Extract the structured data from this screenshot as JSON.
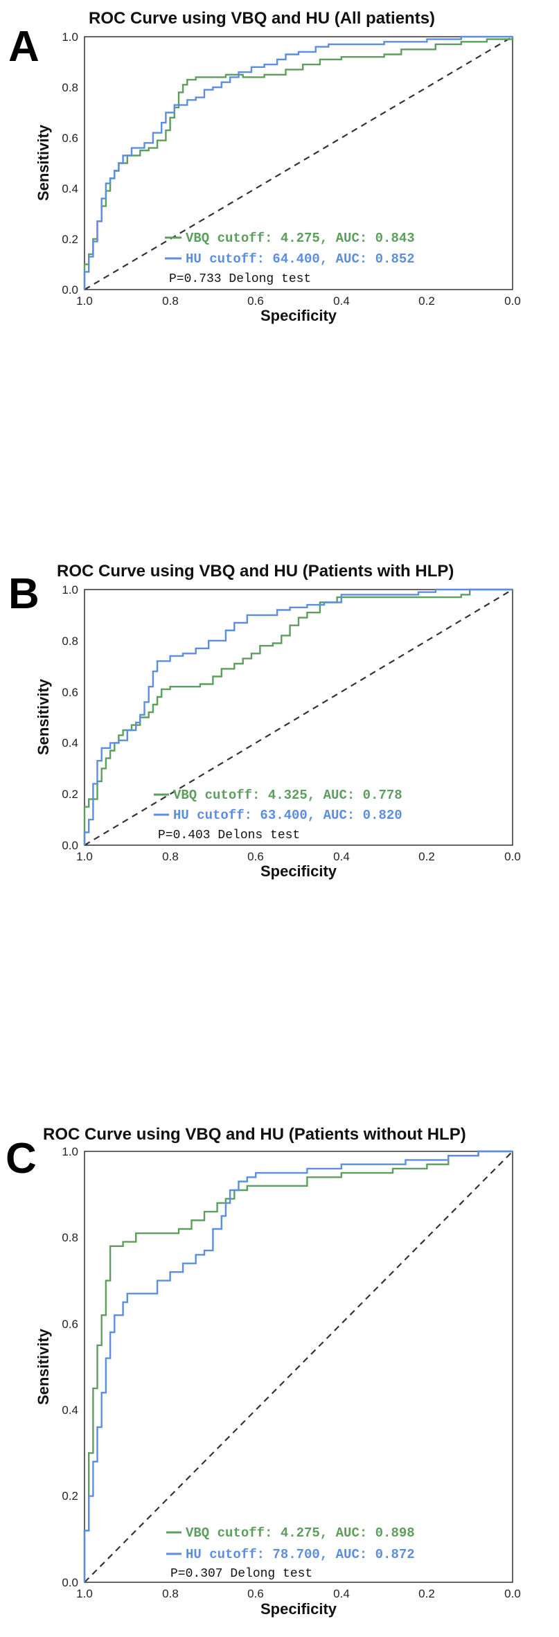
{
  "chart_data": [
    {
      "type": "line",
      "panel": "A",
      "title": "ROC Curve using VBQ and HU (All patients)",
      "xlabel": "Specificity",
      "ylabel": "Sensitivity",
      "xlim": [
        1.0,
        0.0
      ],
      "ylim": [
        0.0,
        1.0
      ],
      "xticks": [
        "1.0",
        "0.8",
        "0.6",
        "0.4",
        "0.2",
        "0.0"
      ],
      "yticks": [
        "0.0",
        "0.2",
        "0.4",
        "0.6",
        "0.8",
        "1.0"
      ],
      "series": [
        {
          "name": "VBQ",
          "legend": "VBQ cutoff: 4.275, AUC: 0.843",
          "color": "#5c9e5c",
          "points": [
            [
              1.0,
              0.0
            ],
            [
              1.0,
              0.1
            ],
            [
              0.99,
              0.14
            ],
            [
              0.98,
              0.2
            ],
            [
              0.97,
              0.27
            ],
            [
              0.96,
              0.33
            ],
            [
              0.95,
              0.39
            ],
            [
              0.94,
              0.44
            ],
            [
              0.93,
              0.47
            ],
            [
              0.92,
              0.5
            ],
            [
              0.9,
              0.53
            ],
            [
              0.87,
              0.55
            ],
            [
              0.85,
              0.56
            ],
            [
              0.83,
              0.59
            ],
            [
              0.81,
              0.63
            ],
            [
              0.8,
              0.68
            ],
            [
              0.79,
              0.72
            ],
            [
              0.78,
              0.78
            ],
            [
              0.77,
              0.81
            ],
            [
              0.76,
              0.83
            ],
            [
              0.74,
              0.84
            ],
            [
              0.7,
              0.84
            ],
            [
              0.67,
              0.85
            ],
            [
              0.63,
              0.84
            ],
            [
              0.58,
              0.85
            ],
            [
              0.53,
              0.87
            ],
            [
              0.49,
              0.89
            ],
            [
              0.45,
              0.91
            ],
            [
              0.4,
              0.92
            ],
            [
              0.34,
              0.92
            ],
            [
              0.3,
              0.93
            ],
            [
              0.26,
              0.95
            ],
            [
              0.18,
              0.97
            ],
            [
              0.12,
              0.98
            ],
            [
              0.06,
              0.99
            ],
            [
              0.0,
              1.0
            ]
          ]
        },
        {
          "name": "HU",
          "legend": "HU cutoff: 64.400, AUC: 0.852",
          "color": "#5b8ee0",
          "points": [
            [
              1.0,
              0.0
            ],
            [
              1.0,
              0.07
            ],
            [
              0.99,
              0.13
            ],
            [
              0.98,
              0.19
            ],
            [
              0.97,
              0.27
            ],
            [
              0.96,
              0.36
            ],
            [
              0.95,
              0.42
            ],
            [
              0.94,
              0.44
            ],
            [
              0.93,
              0.47
            ],
            [
              0.92,
              0.5
            ],
            [
              0.91,
              0.53
            ],
            [
              0.89,
              0.56
            ],
            [
              0.86,
              0.58
            ],
            [
              0.84,
              0.62
            ],
            [
              0.82,
              0.66
            ],
            [
              0.81,
              0.7
            ],
            [
              0.79,
              0.73
            ],
            [
              0.76,
              0.75
            ],
            [
              0.74,
              0.76
            ],
            [
              0.72,
              0.79
            ],
            [
              0.7,
              0.8
            ],
            [
              0.68,
              0.82
            ],
            [
              0.66,
              0.84
            ],
            [
              0.64,
              0.86
            ],
            [
              0.61,
              0.88
            ],
            [
              0.58,
              0.89
            ],
            [
              0.55,
              0.91
            ],
            [
              0.53,
              0.93
            ],
            [
              0.5,
              0.94
            ],
            [
              0.46,
              0.96
            ],
            [
              0.43,
              0.97
            ],
            [
              0.38,
              0.97
            ],
            [
              0.3,
              0.98
            ],
            [
              0.2,
              0.99
            ],
            [
              0.12,
              1.0
            ],
            [
              0.0,
              1.0
            ]
          ]
        }
      ],
      "note": "P=0.733 Delong test"
    },
    {
      "type": "line",
      "panel": "B",
      "title": "ROC Curve using VBQ and HU (Patients with HLP)",
      "xlabel": "Specificity",
      "ylabel": "Sensitivity",
      "xlim": [
        1.0,
        0.0
      ],
      "ylim": [
        0.0,
        1.0
      ],
      "xticks": [
        "1.0",
        "0.8",
        "0.6",
        "0.4",
        "0.2",
        "0.0"
      ],
      "yticks": [
        "0.0",
        "0.2",
        "0.4",
        "0.6",
        "0.8",
        "1.0"
      ],
      "series": [
        {
          "name": "VBQ",
          "legend": "VBQ cutoff: 4.325, AUC: 0.778",
          "color": "#5c9e5c",
          "points": [
            [
              1.0,
              0.0
            ],
            [
              1.0,
              0.15
            ],
            [
              0.99,
              0.18
            ],
            [
              0.97,
              0.18
            ],
            [
              0.97,
              0.25
            ],
            [
              0.96,
              0.3
            ],
            [
              0.95,
              0.34
            ],
            [
              0.94,
              0.37
            ],
            [
              0.93,
              0.4
            ],
            [
              0.92,
              0.43
            ],
            [
              0.91,
              0.45
            ],
            [
              0.89,
              0.47
            ],
            [
              0.87,
              0.5
            ],
            [
              0.85,
              0.52
            ],
            [
              0.84,
              0.55
            ],
            [
              0.83,
              0.58
            ],
            [
              0.82,
              0.61
            ],
            [
              0.8,
              0.62
            ],
            [
              0.76,
              0.62
            ],
            [
              0.73,
              0.63
            ],
            [
              0.7,
              0.66
            ],
            [
              0.68,
              0.69
            ],
            [
              0.65,
              0.71
            ],
            [
              0.63,
              0.73
            ],
            [
              0.61,
              0.75
            ],
            [
              0.59,
              0.78
            ],
            [
              0.56,
              0.79
            ],
            [
              0.54,
              0.82
            ],
            [
              0.52,
              0.86
            ],
            [
              0.5,
              0.89
            ],
            [
              0.48,
              0.91
            ],
            [
              0.45,
              0.95
            ],
            [
              0.41,
              0.97
            ],
            [
              0.3,
              0.97
            ],
            [
              0.15,
              0.97
            ],
            [
              0.12,
              0.98
            ],
            [
              0.1,
              1.0
            ],
            [
              0.0,
              1.0
            ]
          ]
        },
        {
          "name": "HU",
          "legend": "HU cutoff: 63.400, AUC: 0.820",
          "color": "#5b8ee0",
          "points": [
            [
              1.0,
              0.0
            ],
            [
              1.0,
              0.05
            ],
            [
              0.99,
              0.1
            ],
            [
              0.98,
              0.24
            ],
            [
              0.97,
              0.33
            ],
            [
              0.96,
              0.38
            ],
            [
              0.94,
              0.4
            ],
            [
              0.92,
              0.41
            ],
            [
              0.9,
              0.45
            ],
            [
              0.88,
              0.48
            ],
            [
              0.87,
              0.51
            ],
            [
              0.86,
              0.56
            ],
            [
              0.85,
              0.62
            ],
            [
              0.84,
              0.68
            ],
            [
              0.83,
              0.72
            ],
            [
              0.8,
              0.74
            ],
            [
              0.77,
              0.75
            ],
            [
              0.74,
              0.77
            ],
            [
              0.71,
              0.8
            ],
            [
              0.67,
              0.84
            ],
            [
              0.65,
              0.87
            ],
            [
              0.62,
              0.9
            ],
            [
              0.58,
              0.9
            ],
            [
              0.55,
              0.92
            ],
            [
              0.52,
              0.93
            ],
            [
              0.48,
              0.94
            ],
            [
              0.44,
              0.95
            ],
            [
              0.4,
              0.98
            ],
            [
              0.3,
              0.98
            ],
            [
              0.22,
              0.99
            ],
            [
              0.18,
              1.0
            ],
            [
              0.0,
              1.0
            ]
          ]
        }
      ],
      "note": "P=0.403 Delons test"
    },
    {
      "type": "line",
      "panel": "C",
      "title": "ROC Curve using VBQ and HU (Patients without HLP)",
      "xlabel": "Specificity",
      "ylabel": "Sensitivity",
      "xlim": [
        1.0,
        0.0
      ],
      "ylim": [
        0.0,
        1.0
      ],
      "xticks": [
        "1.0",
        "0.8",
        "0.6",
        "0.4",
        "0.2",
        "0.0"
      ],
      "yticks": [
        "0.0",
        "0.2",
        "0.4",
        "0.6",
        "0.8",
        "1.0"
      ],
      "series": [
        {
          "name": "VBQ",
          "legend": "VBQ cutoff: 4.275, AUC: 0.898",
          "color": "#5c9e5c",
          "points": [
            [
              1.0,
              0.0
            ],
            [
              1.0,
              0.12
            ],
            [
              0.99,
              0.3
            ],
            [
              0.98,
              0.45
            ],
            [
              0.97,
              0.55
            ],
            [
              0.96,
              0.62
            ],
            [
              0.95,
              0.7
            ],
            [
              0.94,
              0.78
            ],
            [
              0.91,
              0.79
            ],
            [
              0.88,
              0.81
            ],
            [
              0.83,
              0.81
            ],
            [
              0.78,
              0.82
            ],
            [
              0.75,
              0.84
            ],
            [
              0.72,
              0.86
            ],
            [
              0.69,
              0.88
            ],
            [
              0.67,
              0.89
            ],
            [
              0.65,
              0.91
            ],
            [
              0.62,
              0.92
            ],
            [
              0.55,
              0.92
            ],
            [
              0.48,
              0.94
            ],
            [
              0.4,
              0.95
            ],
            [
              0.28,
              0.96
            ],
            [
              0.2,
              0.97
            ],
            [
              0.15,
              0.99
            ],
            [
              0.08,
              1.0
            ],
            [
              0.0,
              1.0
            ]
          ]
        },
        {
          "name": "HU",
          "legend": "HU cutoff: 78.700, AUC: 0.872",
          "color": "#5b8ee0",
          "points": [
            [
              1.0,
              0.0
            ],
            [
              1.0,
              0.12
            ],
            [
              0.99,
              0.2
            ],
            [
              0.98,
              0.28
            ],
            [
              0.97,
              0.36
            ],
            [
              0.96,
              0.44
            ],
            [
              0.95,
              0.52
            ],
            [
              0.94,
              0.58
            ],
            [
              0.93,
              0.62
            ],
            [
              0.91,
              0.65
            ],
            [
              0.9,
              0.67
            ],
            [
              0.84,
              0.67
            ],
            [
              0.83,
              0.7
            ],
            [
              0.8,
              0.72
            ],
            [
              0.77,
              0.74
            ],
            [
              0.74,
              0.76
            ],
            [
              0.72,
              0.77
            ],
            [
              0.7,
              0.82
            ],
            [
              0.68,
              0.85
            ],
            [
              0.67,
              0.88
            ],
            [
              0.66,
              0.91
            ],
            [
              0.64,
              0.93
            ],
            [
              0.62,
              0.94
            ],
            [
              0.6,
              0.95
            ],
            [
              0.55,
              0.95
            ],
            [
              0.48,
              0.96
            ],
            [
              0.4,
              0.97
            ],
            [
              0.25,
              0.98
            ],
            [
              0.15,
              0.99
            ],
            [
              0.08,
              1.0
            ],
            [
              0.0,
              1.0
            ]
          ]
        }
      ],
      "note": "P=0.307 Delong test"
    }
  ]
}
